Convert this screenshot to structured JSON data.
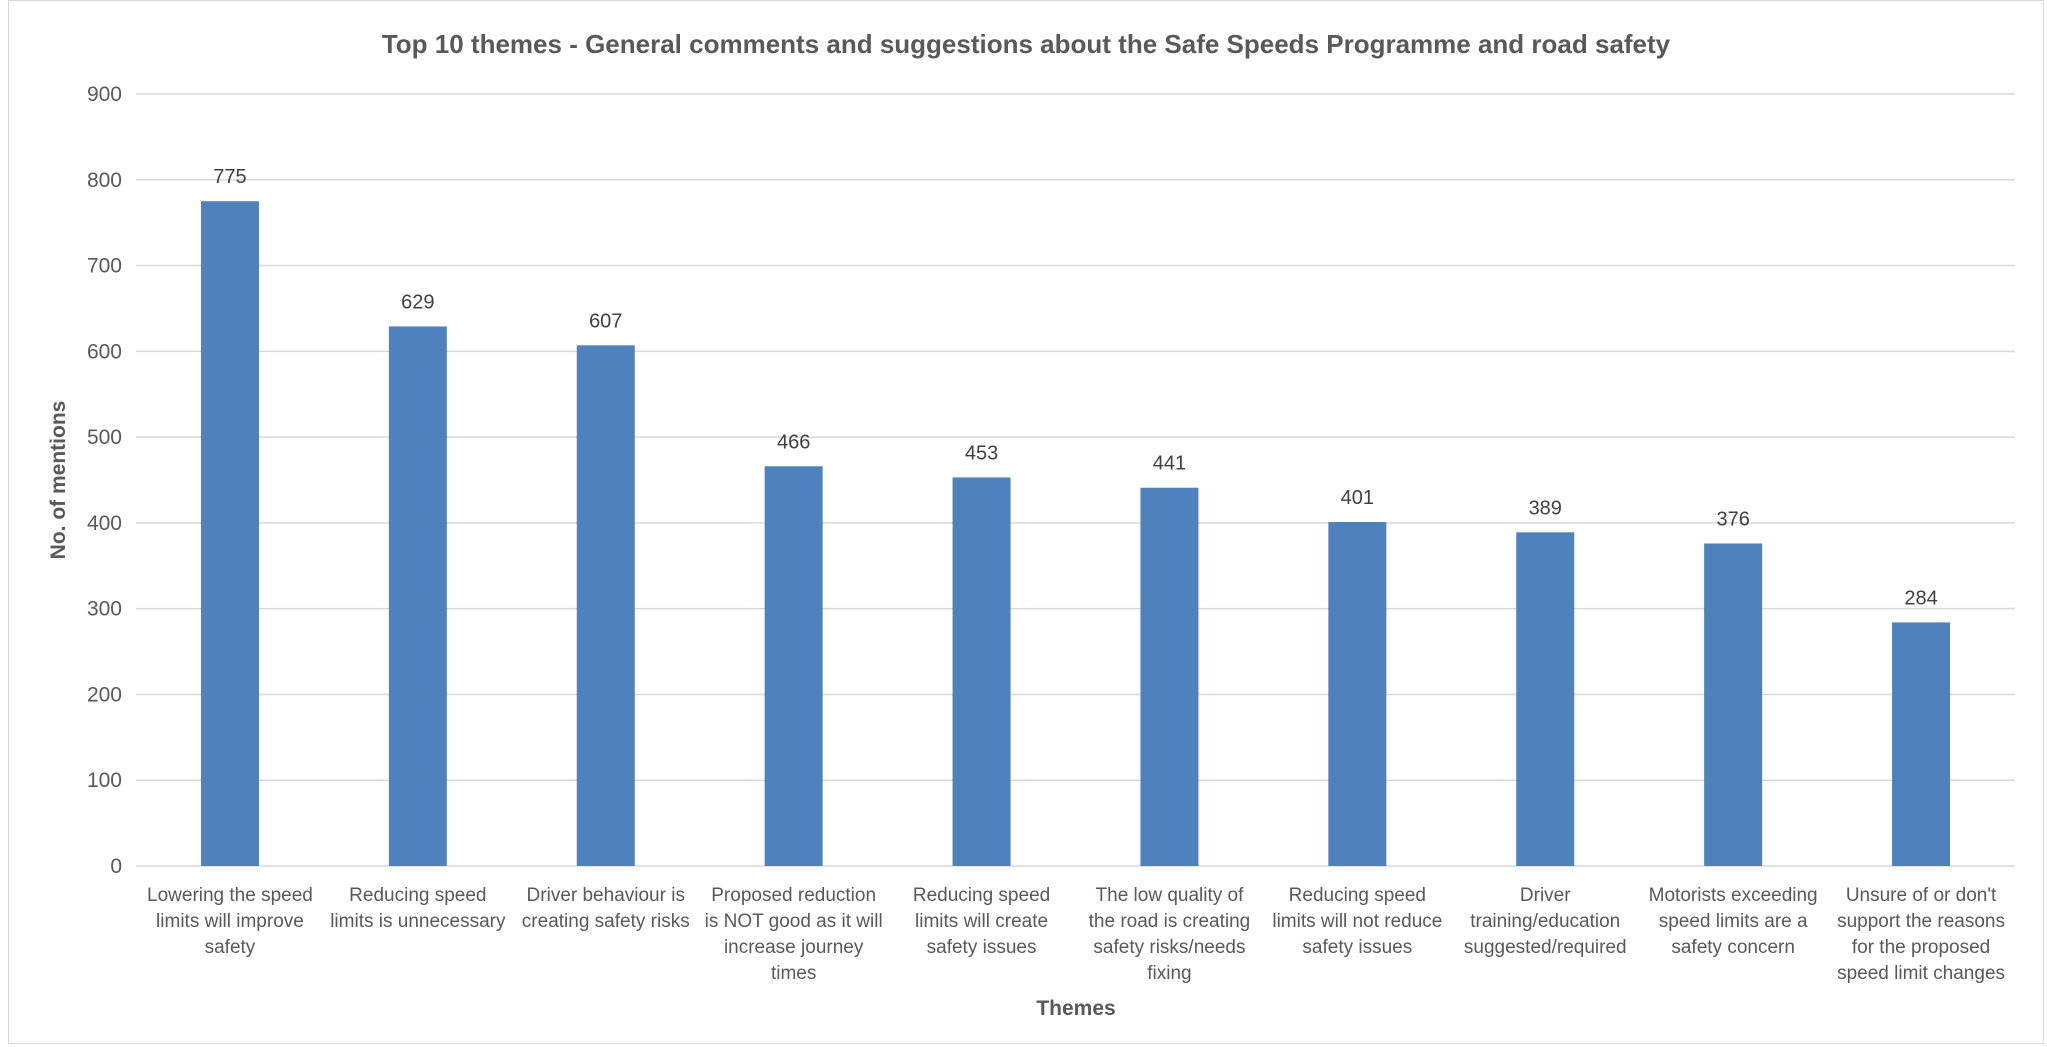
{
  "chart_data": {
    "type": "bar",
    "title": "Top 10 themes - General comments and suggestions about the Safe Speeds Programme and road safety",
    "xlabel": "Themes",
    "ylabel": "No. of mentions",
    "ylim": [
      0,
      900
    ],
    "yticks": [
      0,
      100,
      200,
      300,
      400,
      500,
      600,
      700,
      800,
      900
    ],
    "grid": true,
    "legend": "none",
    "bar_color": "#4f81bd",
    "categories": [
      [
        "Lowering the speed",
        "limits will improve",
        "safety"
      ],
      [
        "Reducing speed",
        "limits is unnecessary"
      ],
      [
        "Driver behaviour is",
        "creating safety risks"
      ],
      [
        "Proposed reduction",
        "is NOT good as it will",
        "increase journey",
        "times"
      ],
      [
        "Reducing speed",
        "limits will create",
        "safety issues"
      ],
      [
        "The low quality of",
        "the road is creating",
        "safety risks/needs",
        "fixing"
      ],
      [
        "Reducing speed",
        "limits will not reduce",
        "safety issues"
      ],
      [
        "Driver",
        "training/education",
        "suggested/required"
      ],
      [
        "Motorists exceeding",
        "speed limits are a",
        "safety concern"
      ],
      [
        "Unsure of or don't",
        "support the reasons",
        "for the proposed",
        "speed limit changes"
      ]
    ],
    "values": [
      775,
      629,
      607,
      466,
      453,
      441,
      401,
      389,
      376,
      284
    ]
  }
}
